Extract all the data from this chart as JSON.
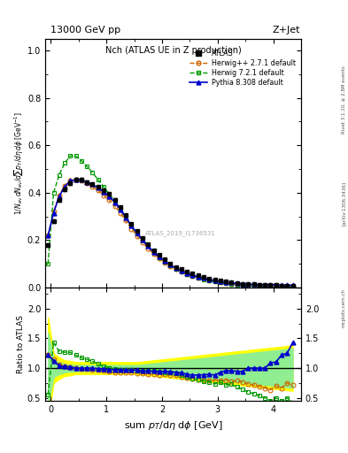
{
  "title_top": "13000 GeV pp",
  "title_right": "Z+Jet",
  "plot_title": "Nch (ATLAS UE in Z production)",
  "xlabel": "sum p$_T$/dη dϕ [GeV]",
  "ylabel_main": "1/N$_{ev}$ dN$_{ev}$/dsum p$_T$/dη dϕ  [GeV]$^{-1}$",
  "ylabel_ratio": "Ratio to ATLAS",
  "watermark": "ATLAS_2019_I1736531",
  "rivet_text": "Rivet 3.1.10, ≥ 2.8M events",
  "arxiv_text": "[arXiv:1306.3436]",
  "mcplots_text": "mcplots.cern.ch",
  "atlas_x": [
    -0.05,
    0.05,
    0.15,
    0.25,
    0.35,
    0.45,
    0.55,
    0.65,
    0.75,
    0.85,
    0.95,
    1.05,
    1.15,
    1.25,
    1.35,
    1.45,
    1.55,
    1.65,
    1.75,
    1.85,
    1.95,
    2.05,
    2.15,
    2.25,
    2.35,
    2.45,
    2.55,
    2.65,
    2.75,
    2.85,
    2.95,
    3.05,
    3.15,
    3.25,
    3.35,
    3.45,
    3.55,
    3.65,
    3.75,
    3.85,
    3.95,
    4.05,
    4.15,
    4.25,
    4.35
  ],
  "atlas_y": [
    0.18,
    0.28,
    0.37,
    0.415,
    0.44,
    0.455,
    0.455,
    0.445,
    0.435,
    0.425,
    0.41,
    0.395,
    0.37,
    0.34,
    0.305,
    0.268,
    0.238,
    0.21,
    0.183,
    0.158,
    0.138,
    0.118,
    0.102,
    0.088,
    0.077,
    0.068,
    0.06,
    0.052,
    0.045,
    0.039,
    0.034,
    0.029,
    0.025,
    0.022,
    0.019,
    0.017,
    0.015,
    0.014,
    0.013,
    0.012,
    0.011,
    0.01,
    0.009,
    0.008,
    0.007
  ],
  "atlas_yerr": [
    0.008,
    0.008,
    0.008,
    0.008,
    0.008,
    0.007,
    0.007,
    0.007,
    0.007,
    0.006,
    0.006,
    0.006,
    0.006,
    0.005,
    0.005,
    0.005,
    0.004,
    0.004,
    0.004,
    0.003,
    0.003,
    0.003,
    0.003,
    0.002,
    0.002,
    0.002,
    0.002,
    0.002,
    0.002,
    0.002,
    0.001,
    0.001,
    0.001,
    0.001,
    0.001,
    0.001,
    0.001,
    0.001,
    0.001,
    0.001,
    0.001,
    0.001,
    0.001,
    0.001,
    0.001
  ],
  "atlas_band_x": [
    -0.05,
    0.05,
    0.15,
    0.25,
    0.35,
    0.45,
    0.55,
    0.65,
    0.75,
    0.85,
    0.95,
    1.05,
    1.15,
    1.25,
    1.35,
    1.45,
    1.55,
    1.65,
    1.75,
    1.85,
    1.95,
    2.05,
    2.15,
    2.25,
    2.35,
    2.45,
    2.55,
    2.65,
    2.75,
    2.85,
    2.95,
    3.05,
    3.15,
    3.25,
    3.35,
    3.45,
    3.55,
    3.65,
    3.75,
    3.85,
    3.95,
    4.05,
    4.15,
    4.25,
    4.35
  ],
  "atlas_band_lo": [
    0.4,
    0.85,
    0.9,
    0.93,
    0.94,
    0.95,
    0.95,
    0.95,
    0.95,
    0.95,
    0.95,
    0.95,
    0.95,
    0.95,
    0.95,
    0.95,
    0.95,
    0.94,
    0.93,
    0.92,
    0.91,
    0.9,
    0.89,
    0.88,
    0.87,
    0.86,
    0.85,
    0.84,
    0.83,
    0.82,
    0.81,
    0.8,
    0.79,
    0.78,
    0.77,
    0.76,
    0.75,
    0.74,
    0.73,
    0.72,
    0.71,
    0.7,
    0.69,
    0.68,
    0.67
  ],
  "atlas_band_hi": [
    1.6,
    1.15,
    1.1,
    1.07,
    1.06,
    1.05,
    1.05,
    1.05,
    1.05,
    1.05,
    1.05,
    1.05,
    1.05,
    1.05,
    1.05,
    1.05,
    1.05,
    1.06,
    1.07,
    1.08,
    1.09,
    1.1,
    1.11,
    1.12,
    1.13,
    1.14,
    1.15,
    1.16,
    1.17,
    1.18,
    1.19,
    1.2,
    1.21,
    1.22,
    1.23,
    1.24,
    1.25,
    1.26,
    1.27,
    1.28,
    1.29,
    1.3,
    1.31,
    1.32,
    1.33
  ],
  "atlas_band2_lo": [
    0.15,
    0.75,
    0.82,
    0.87,
    0.88,
    0.9,
    0.9,
    0.9,
    0.9,
    0.9,
    0.9,
    0.9,
    0.9,
    0.9,
    0.9,
    0.9,
    0.9,
    0.89,
    0.88,
    0.87,
    0.86,
    0.85,
    0.84,
    0.83,
    0.82,
    0.81,
    0.8,
    0.79,
    0.78,
    0.77,
    0.76,
    0.75,
    0.74,
    0.73,
    0.72,
    0.71,
    0.7,
    0.69,
    0.68,
    0.67,
    0.66,
    0.65,
    0.64,
    0.63,
    0.62
  ],
  "atlas_band2_hi": [
    1.85,
    1.25,
    1.18,
    1.13,
    1.12,
    1.1,
    1.1,
    1.1,
    1.1,
    1.1,
    1.1,
    1.1,
    1.1,
    1.1,
    1.1,
    1.1,
    1.1,
    1.11,
    1.12,
    1.13,
    1.14,
    1.15,
    1.16,
    1.17,
    1.18,
    1.19,
    1.2,
    1.21,
    1.22,
    1.23,
    1.24,
    1.25,
    1.26,
    1.27,
    1.28,
    1.29,
    1.3,
    1.31,
    1.32,
    1.33,
    1.34,
    1.35,
    1.36,
    1.37,
    1.38
  ],
  "herwig_pp_x": [
    -0.05,
    0.05,
    0.15,
    0.25,
    0.35,
    0.45,
    0.55,
    0.65,
    0.75,
    0.85,
    0.95,
    1.05,
    1.15,
    1.25,
    1.35,
    1.45,
    1.55,
    1.65,
    1.75,
    1.85,
    1.95,
    2.05,
    2.15,
    2.25,
    2.35,
    2.45,
    2.55,
    2.65,
    2.75,
    2.85,
    2.95,
    3.05,
    3.15,
    3.25,
    3.35,
    3.45,
    3.55,
    3.65,
    3.75,
    3.85,
    3.95,
    4.05,
    4.15,
    4.25,
    4.35
  ],
  "herwig_pp_y": [
    0.22,
    0.32,
    0.39,
    0.43,
    0.45,
    0.455,
    0.45,
    0.44,
    0.425,
    0.41,
    0.39,
    0.37,
    0.345,
    0.315,
    0.282,
    0.248,
    0.218,
    0.19,
    0.164,
    0.142,
    0.122,
    0.105,
    0.09,
    0.077,
    0.066,
    0.057,
    0.049,
    0.042,
    0.036,
    0.031,
    0.027,
    0.023,
    0.02,
    0.017,
    0.015,
    0.013,
    0.011,
    0.01,
    0.009,
    0.008,
    0.007,
    0.007,
    0.006,
    0.006,
    0.005
  ],
  "herwig72_x": [
    -0.05,
    0.05,
    0.15,
    0.25,
    0.35,
    0.45,
    0.55,
    0.65,
    0.75,
    0.85,
    0.95,
    1.05,
    1.15,
    1.25,
    1.35,
    1.45,
    1.55,
    1.65,
    1.75,
    1.85,
    1.95,
    2.05,
    2.15,
    2.25,
    2.35,
    2.45,
    2.55,
    2.65,
    2.75,
    2.85,
    2.95,
    3.05,
    3.15,
    3.25,
    3.35,
    3.45,
    3.55,
    3.65,
    3.75,
    3.85,
    3.95,
    4.05,
    4.15,
    4.25,
    4.35
  ],
  "herwig72_y": [
    0.1,
    0.4,
    0.475,
    0.525,
    0.555,
    0.555,
    0.535,
    0.51,
    0.485,
    0.455,
    0.425,
    0.395,
    0.365,
    0.33,
    0.295,
    0.26,
    0.228,
    0.2,
    0.174,
    0.15,
    0.129,
    0.11,
    0.094,
    0.08,
    0.068,
    0.058,
    0.049,
    0.042,
    0.035,
    0.03,
    0.025,
    0.022,
    0.018,
    0.016,
    0.013,
    0.011,
    0.009,
    0.008,
    0.007,
    0.006,
    0.005,
    0.005,
    0.004,
    0.004,
    0.003
  ],
  "pythia_x": [
    -0.05,
    0.05,
    0.15,
    0.25,
    0.35,
    0.45,
    0.55,
    0.65,
    0.75,
    0.85,
    0.95,
    1.05,
    1.15,
    1.25,
    1.35,
    1.45,
    1.55,
    1.65,
    1.75,
    1.85,
    1.95,
    2.05,
    2.15,
    2.25,
    2.35,
    2.45,
    2.55,
    2.65,
    2.75,
    2.85,
    2.95,
    3.05,
    3.15,
    3.25,
    3.35,
    3.45,
    3.55,
    3.65,
    3.75,
    3.85,
    3.95,
    4.05,
    4.15,
    4.25,
    4.35
  ],
  "pythia_y": [
    0.22,
    0.315,
    0.385,
    0.425,
    0.45,
    0.455,
    0.455,
    0.445,
    0.435,
    0.42,
    0.405,
    0.385,
    0.36,
    0.33,
    0.295,
    0.26,
    0.23,
    0.2,
    0.174,
    0.15,
    0.13,
    0.112,
    0.096,
    0.082,
    0.071,
    0.061,
    0.053,
    0.046,
    0.04,
    0.035,
    0.03,
    0.027,
    0.024,
    0.021,
    0.018,
    0.016,
    0.015,
    0.014,
    0.013,
    0.012,
    0.012,
    0.011,
    0.011,
    0.01,
    0.01
  ],
  "ylim_main": [
    0.0,
    1.05
  ],
  "ylim_ratio": [
    0.45,
    2.35
  ],
  "xlim": [
    -0.1,
    4.5
  ],
  "color_atlas": "#000000",
  "color_herwig_pp": "#cc6600",
  "color_herwig72": "#009900",
  "color_pythia": "#0000cc",
  "bg_color": "#ffffff",
  "ratio_line": 1.0,
  "band_yellow": "#ffff00",
  "band_green": "#90ee90"
}
